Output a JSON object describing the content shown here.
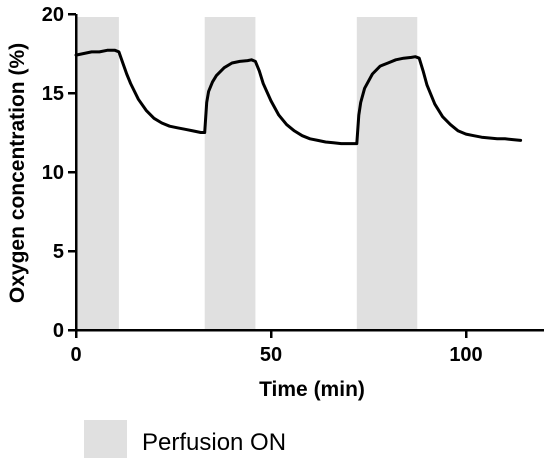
{
  "chart_data": {
    "type": "line",
    "title": "",
    "xlabel": "Time (min)",
    "ylabel": "Oxygen concentration (%)",
    "xlim": [
      0,
      120
    ],
    "ylim": [
      0,
      20
    ],
    "x_ticks": [
      0,
      50,
      100
    ],
    "y_ticks": [
      0,
      5,
      10,
      15,
      20
    ],
    "grid": false,
    "legend_position": "bottom-left",
    "legend": [
      {
        "label": "Perfusion ON",
        "color": "#e0e0e0"
      }
    ],
    "shaded_regions": [
      {
        "x_start": 0,
        "x_end": 11,
        "label": "Perfusion ON"
      },
      {
        "x_start": 33,
        "x_end": 46,
        "label": "Perfusion ON"
      },
      {
        "x_start": 72,
        "x_end": 87.5,
        "label": "Perfusion ON"
      }
    ],
    "series": [
      {
        "color": "#000000",
        "x": [
          0,
          2,
          4,
          6,
          8,
          10,
          11,
          12,
          13,
          14,
          16,
          18,
          20,
          22,
          24,
          26,
          28,
          30,
          32,
          33,
          33.5,
          34,
          35,
          36,
          38,
          40,
          42,
          44,
          45,
          46,
          47,
          48,
          50,
          52,
          54,
          56,
          58,
          60,
          62,
          64,
          66,
          68,
          70,
          71,
          72,
          72.5,
          73,
          74,
          76,
          78,
          80,
          82,
          84,
          86,
          87,
          88,
          89,
          90,
          92,
          94,
          96,
          98,
          100,
          102,
          104,
          106,
          108,
          110,
          112,
          114
        ],
        "y": [
          17.4,
          17.5,
          17.6,
          17.6,
          17.7,
          17.7,
          17.6,
          16.9,
          16.2,
          15.6,
          14.6,
          13.9,
          13.4,
          13.1,
          12.9,
          12.8,
          12.7,
          12.6,
          12.5,
          12.5,
          14.4,
          15.1,
          15.7,
          16.1,
          16.6,
          16.9,
          17.0,
          17.05,
          17.1,
          17.0,
          16.4,
          15.6,
          14.5,
          13.6,
          13.0,
          12.6,
          12.3,
          12.1,
          12.0,
          11.9,
          11.85,
          11.8,
          11.8,
          11.8,
          11.8,
          13.6,
          14.4,
          15.3,
          16.2,
          16.7,
          16.9,
          17.1,
          17.2,
          17.25,
          17.3,
          17.2,
          16.4,
          15.5,
          14.3,
          13.5,
          13.0,
          12.6,
          12.4,
          12.3,
          12.2,
          12.15,
          12.1,
          12.1,
          12.05,
          12.0
        ]
      }
    ]
  }
}
